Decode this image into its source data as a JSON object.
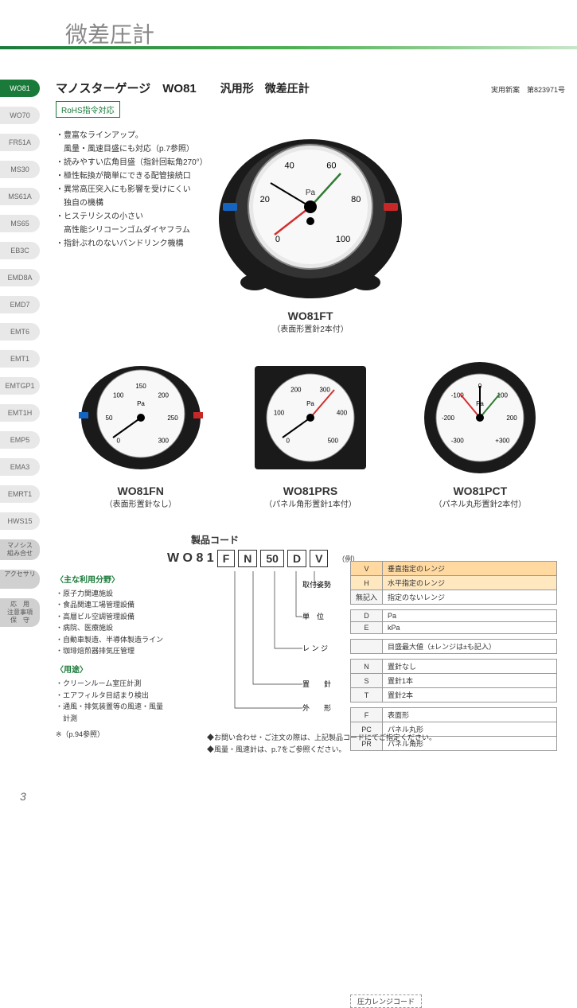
{
  "page": {
    "title": "微差圧計",
    "number": "3"
  },
  "sidebar": {
    "items": [
      {
        "label": "WO81",
        "active": true
      },
      {
        "label": "WO70"
      },
      {
        "label": "FR51A"
      },
      {
        "label": "MS30"
      },
      {
        "label": "MS61A"
      },
      {
        "label": "MS65"
      },
      {
        "label": "EB3C"
      },
      {
        "label": "EMD8A"
      },
      {
        "label": "EMD7"
      },
      {
        "label": "EMT6"
      },
      {
        "label": "EMT1"
      },
      {
        "label": "EMTGP1"
      },
      {
        "label": "EMT1H"
      },
      {
        "label": "EMP5"
      },
      {
        "label": "EMA3"
      },
      {
        "label": "EMRT1"
      },
      {
        "label": "HWS15"
      },
      {
        "label": "マノシス\n組み合せ",
        "gray": true
      },
      {
        "label": "アクセサリ",
        "gray": true
      },
      {
        "label": "応　用\n注意事項\n保　守",
        "gray": true
      }
    ]
  },
  "header": {
    "heading_main": "マノスターゲージ　WO81",
    "heading_sub": "汎用形　微差圧計",
    "patent": "実用新案　第823971号",
    "rohs": "RoHS指令対応"
  },
  "features": [
    "・豊富なラインアップ。",
    "　風量・風速目盛にも対応（p.7参照）",
    "・読みやすい広角目盛（指針回転角270°）",
    "・極性転換が簡単にできる配管接続口",
    "・異常高圧突入にも影響を受けにくい",
    "　独自の機構",
    "・ヒステリシスの小さい",
    "　高性能シリコーンゴムダイヤフラム",
    "・指針ぶれのないバンドリンク機構"
  ],
  "gauges": {
    "main": {
      "label": "WO81FT",
      "sublabel": "（表面形置針2本付）",
      "scale": [
        "0",
        "20",
        "40",
        "60",
        "80",
        "100"
      ],
      "unit": "Pa"
    },
    "row": [
      {
        "label": "WO81FN",
        "sublabel": "（表面形置針なし）",
        "scale": [
          "0",
          "50",
          "100",
          "150",
          "200",
          "250",
          "300"
        ],
        "unit": "Pa"
      },
      {
        "label": "WO81PRS",
        "sublabel": "（パネル角形置針1本付）",
        "scale": [
          "0",
          "100",
          "200",
          "300",
          "400",
          "500"
        ],
        "unit": "Pa"
      },
      {
        "label": "WO81PCT",
        "sublabel": "（パネル丸形置針2本付）",
        "scale": [
          "-300",
          "-200",
          "-100",
          "0",
          "100",
          "200",
          "+300"
        ],
        "unit": "Pa"
      }
    ]
  },
  "product_code": {
    "title": "製品コード",
    "range_label": "圧力レンジコード",
    "prefix": "W O 8 1",
    "boxes": [
      "F",
      "N",
      "50",
      "D",
      "V"
    ],
    "example": "（例）",
    "lines": [
      {
        "label": "取付姿勢"
      },
      {
        "label": "単　位"
      },
      {
        "label": "レ ン ジ"
      },
      {
        "label": "置　　針"
      },
      {
        "label": "外　　形"
      }
    ],
    "tables": {
      "orientation": [
        {
          "code": "V",
          "desc": "垂直指定のレンジ",
          "hl": "v"
        },
        {
          "code": "H",
          "desc": "水平指定のレンジ",
          "hl": "h"
        },
        {
          "code": "無記入",
          "desc": "指定のないレンジ"
        }
      ],
      "unit": [
        {
          "code": "D",
          "desc": "Pa"
        },
        {
          "code": "E",
          "desc": "kPa"
        }
      ],
      "range": [
        {
          "code": "",
          "desc": "目盛最大値（±レンジは±も記入）"
        }
      ],
      "pointer": [
        {
          "code": "N",
          "desc": "置針なし"
        },
        {
          "code": "S",
          "desc": "置針1本"
        },
        {
          "code": "T",
          "desc": "置針2本"
        }
      ],
      "shape": [
        {
          "code": "F",
          "desc": "表面形"
        },
        {
          "code": "PC",
          "desc": "パネル丸形"
        },
        {
          "code": "PR",
          "desc": "パネル角形"
        }
      ]
    }
  },
  "usage": {
    "field_title": "〈主な利用分野〉",
    "fields": [
      "・原子力関連施設",
      "・食品関連工場管理設備",
      "・高層ビル空調管理設備",
      "・病院、医療施設",
      "・自動車製造、半導体製造ライン",
      "・珈琲焙煎器排気圧管理"
    ],
    "app_title": "〈用途〉",
    "apps": [
      "・クリーンルーム室圧計測",
      "・エアフィルタ目詰まり検出",
      "・通風・排気装置等の風速・風量",
      "　計測"
    ],
    "ref": "※（p.94参照）"
  },
  "notes": [
    "◆お問い合わせ・ご注文の際は、上記製品コードにてご指定ください。",
    "◆風量・風速計は、p.7をご参照ください。"
  ]
}
